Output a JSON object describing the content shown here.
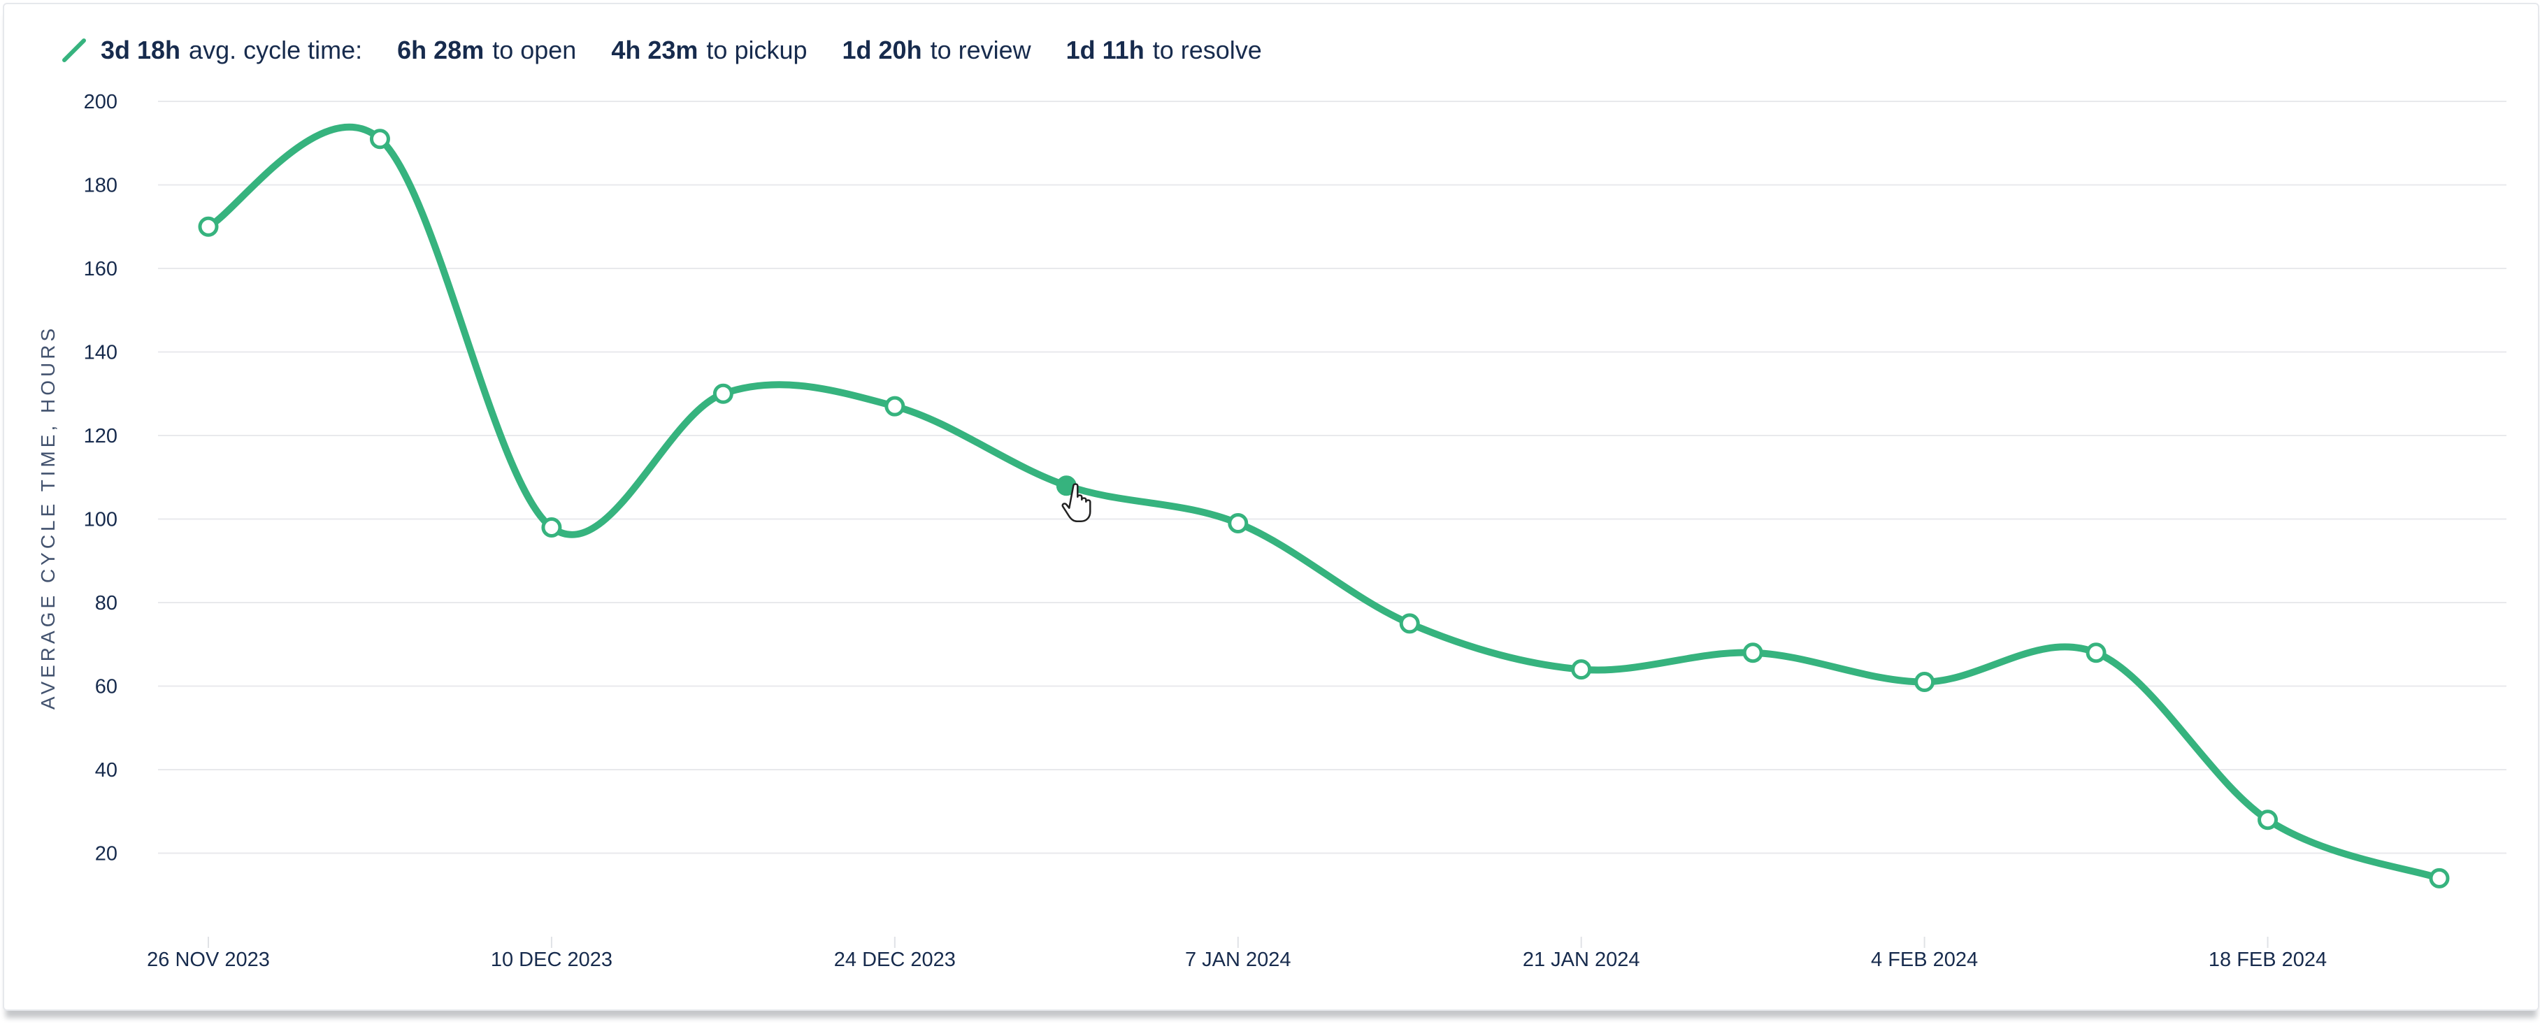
{
  "summary": {
    "total_value": "3d 18h",
    "total_label": "avg. cycle time:",
    "open_value": "6h 28m",
    "open_label": "to open",
    "pickup_value": "4h 23m",
    "pickup_label": "to pickup",
    "review_value": "1d 20h",
    "review_label": "to review",
    "resolve_value": "1d 11h",
    "resolve_label": "to resolve",
    "pencil_icon": "pencil-icon"
  },
  "chart_data": {
    "type": "line",
    "title": "",
    "xlabel": "",
    "ylabel": "AVERAGE CYCLE TIME, HOURS",
    "ylim": [
      0,
      200
    ],
    "yticks": [
      20,
      40,
      60,
      80,
      100,
      120,
      140,
      160,
      180,
      200
    ],
    "x_tick_labels": [
      "26 NOV 2023",
      "10 DEC 2023",
      "24 DEC 2023",
      "7 JAN 2024",
      "21 JAN 2024",
      "4 FEB 2024",
      "18 FEB 2024"
    ],
    "x_tick_indices": [
      0,
      2,
      4,
      6,
      8,
      10,
      12
    ],
    "series": [
      {
        "name": "Average cycle time",
        "color": "#36b37e",
        "values": [
          170,
          191,
          98,
          130,
          127,
          108,
          99,
          75,
          64,
          68,
          61,
          68,
          28,
          14
        ]
      }
    ],
    "hovered_index": 5,
    "grid": true
  }
}
